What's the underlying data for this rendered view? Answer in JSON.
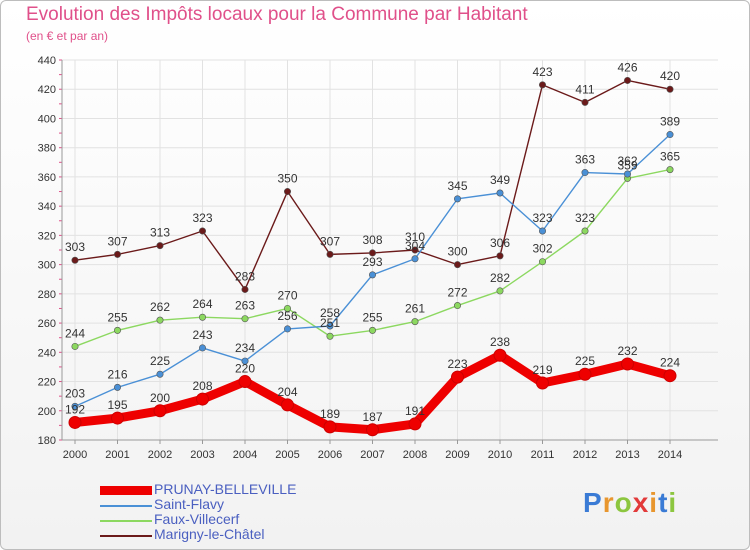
{
  "title": "Evolution des Impôts locaux pour la Commune par Habitant",
  "subtitle": "(en € et par an)",
  "logo": {
    "text": "Proxiti",
    "letters": [
      "P",
      "r",
      "o",
      "x",
      "i",
      "t",
      "i"
    ],
    "colors": [
      "#3a7bd5",
      "#e8962e",
      "#8cc63f",
      "#e23a3a",
      "#e8962e",
      "#3a7bd5",
      "#8cc63f"
    ]
  },
  "chart_data": {
    "type": "line",
    "x": [
      "2000",
      "2001",
      "2002",
      "2003",
      "2004",
      "2005",
      "2006",
      "2007",
      "2008",
      "2009",
      "2010",
      "2011",
      "2012",
      "2013",
      "2014"
    ],
    "ylim": [
      180,
      440
    ],
    "yticks": [
      180,
      200,
      220,
      240,
      260,
      280,
      300,
      320,
      340,
      360,
      380,
      400,
      420,
      440
    ],
    "grid": true,
    "series": [
      {
        "name": "PRUNAY-BELLEVILLE",
        "color": "#ee0000",
        "values": [
          192,
          195,
          200,
          208,
          220,
          204,
          189,
          187,
          191,
          223,
          238,
          219,
          225,
          232,
          224
        ]
      },
      {
        "name": "Saint-Flavy",
        "color": "#4a90d6",
        "values": [
          203,
          216,
          225,
          243,
          234,
          256,
          258,
          293,
          304,
          345,
          349,
          323,
          363,
          362,
          389
        ]
      },
      {
        "name": "Faux-Villecerf",
        "color": "#8cd860",
        "values": [
          244,
          255,
          262,
          264,
          263,
          270,
          251,
          255,
          261,
          272,
          282,
          302,
          323,
          359,
          365
        ]
      },
      {
        "name": "Marigny-le-Châtel",
        "color": "#6b1a1a",
        "values": [
          303,
          307,
          313,
          323,
          283,
          350,
          307,
          308,
          310,
          300,
          306,
          423,
          411,
          426,
          420
        ]
      }
    ]
  }
}
